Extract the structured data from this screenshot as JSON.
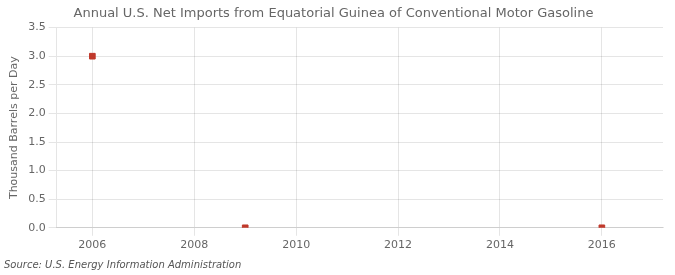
{
  "chart_data": {
    "type": "scatter",
    "title": "Annual U.S. Net Imports from Equatorial Guinea of Conventional Motor Gasoline",
    "ylabel": "Thousand Barrels per Day",
    "annotation": "Source: U.S. Energy Information Administration",
    "x": [
      2006,
      2009,
      2016
    ],
    "values": [
      3.0,
      0.0,
      0.0
    ],
    "color": "#c0392b",
    "marker": "square",
    "xlim": [
      2005.3,
      2017.2
    ],
    "xticks": [
      2006,
      2008,
      2010,
      2012,
      2014,
      2016
    ],
    "ylim": [
      0.0,
      3.5
    ],
    "yticks": [
      {
        "value": 0.0,
        "label": "0.0"
      },
      {
        "value": 0.5,
        "label": "0.5"
      },
      {
        "value": 1.0,
        "label": "1.0"
      },
      {
        "value": 1.5,
        "label": "1.5"
      },
      {
        "value": 2.0,
        "label": "2.0"
      },
      {
        "value": 2.5,
        "label": "2.5"
      },
      {
        "value": 3.0,
        "label": "3.0"
      },
      {
        "value": 3.5,
        "label": "3.5"
      }
    ],
    "grid": true
  }
}
